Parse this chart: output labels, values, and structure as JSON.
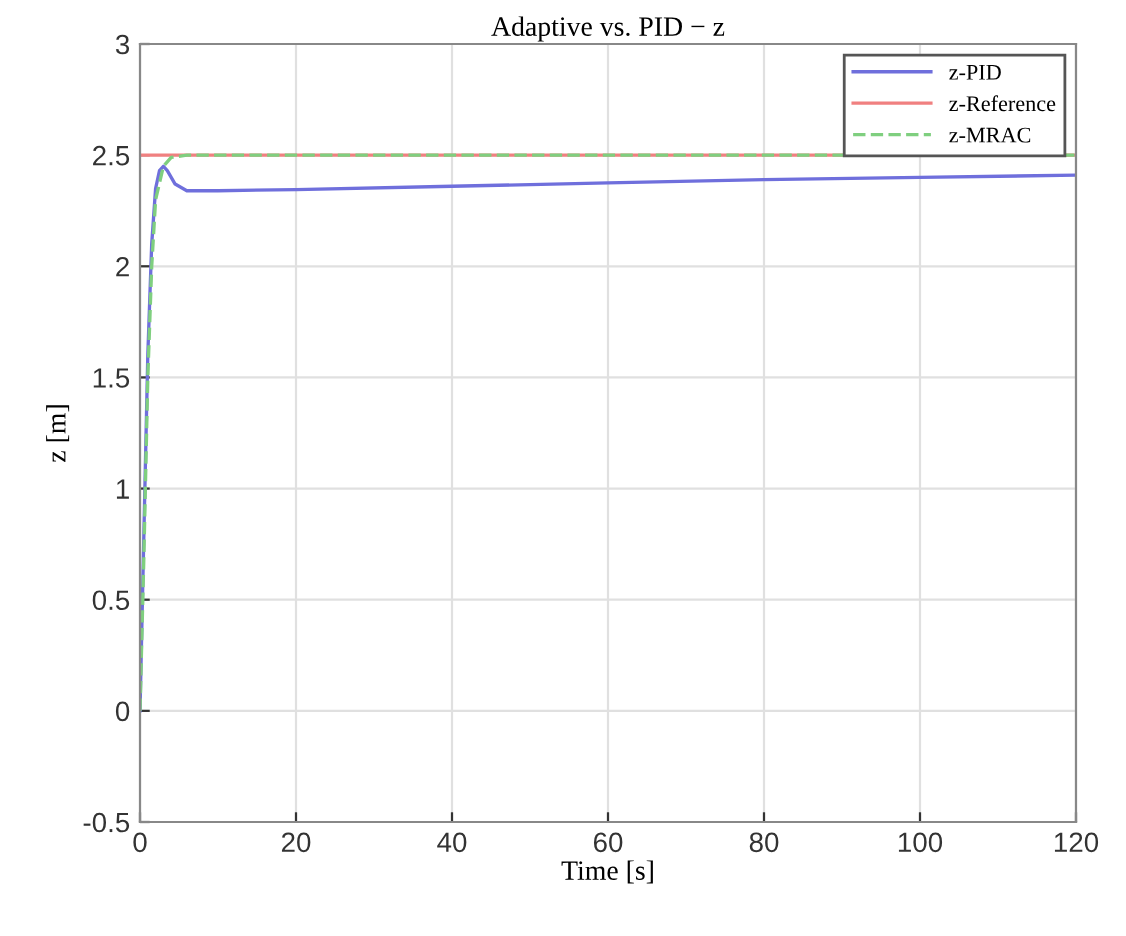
{
  "chart_data": {
    "type": "line",
    "title": "Adaptive vs. PID − z",
    "xlabel": "Time [s]",
    "ylabel": "z [m]",
    "xlim": [
      0,
      120
    ],
    "xticks": [
      0,
      20,
      40,
      60,
      80,
      100,
      120
    ],
    "ylim": [
      -0.5,
      3
    ],
    "yticks": [
      -0.5,
      0,
      0.5,
      1,
      1.5,
      2,
      2.5,
      3
    ],
    "grid": true,
    "legend": "top right",
    "series": [
      {
        "name": "z-PID",
        "color": "#6f6fdc",
        "line_style": "solid",
        "x": [
          0,
          0.5,
          1,
          1.5,
          2,
          2.5,
          3,
          3.5,
          4.5,
          6,
          10,
          20,
          40,
          60,
          80,
          100,
          120
        ],
        "values": [
          0,
          0.8,
          1.6,
          2.1,
          2.35,
          2.43,
          2.45,
          2.43,
          2.37,
          2.34,
          2.34,
          2.345,
          2.36,
          2.375,
          2.39,
          2.4,
          2.41
        ]
      },
      {
        "name": "z-Reference",
        "color": "#f08080",
        "line_style": "solid",
        "x": [
          0,
          120
        ],
        "values": [
          2.5,
          2.5
        ]
      },
      {
        "name": "z-MRAC",
        "color": "#7fcf7f",
        "line_style": "dashed",
        "x": [
          0,
          0.5,
          1,
          1.5,
          2,
          3,
          4,
          6,
          120
        ],
        "values": [
          0,
          0.7,
          1.5,
          2.0,
          2.3,
          2.45,
          2.49,
          2.5,
          2.5
        ]
      }
    ]
  }
}
